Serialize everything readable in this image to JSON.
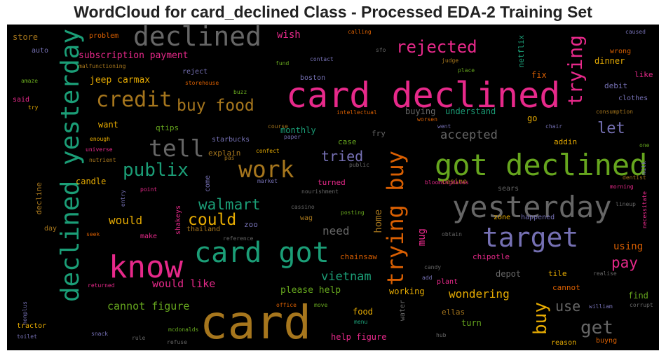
{
  "title": "WordCloud for card_declined Class - Processed EDA-2 Training Set",
  "colors": {
    "pink": "#e7298a",
    "green": "#1b9e77",
    "orange": "#d95f02",
    "purple": "#7570b3",
    "lime": "#66a61e",
    "gold": "#e6ab02",
    "brown": "#a6761d",
    "gray": "#666666"
  },
  "words": [
    "card",
    "card declined",
    "got declined",
    "yesterday",
    "declined yesterday",
    "declined",
    "card got",
    "know",
    "target",
    "trying buy",
    "work",
    "tell",
    "credit",
    "buy food",
    "trying",
    "publix",
    "rejected",
    "buy",
    "walmart",
    "could",
    "let",
    "pay",
    "get",
    "tried",
    "accepted",
    "use",
    "vietnam",
    "wondering",
    "cannot figure",
    "would like",
    "please help",
    "subscription payment",
    "jeep carmax",
    "would",
    "need",
    "chainsaw",
    "mug",
    "home",
    "using",
    "wish",
    "store",
    "auto",
    "problem",
    "malfunctioning",
    "reject",
    "storehouse",
    "buzz",
    "boston",
    "fund",
    "contact",
    "judge",
    "place",
    "netflix",
    "dinner",
    "wrong",
    "like",
    "debit",
    "clothes",
    "caused",
    "calling",
    "sfo",
    "said",
    "try",
    "amaze",
    "want",
    "qtips",
    "buying",
    "understand",
    "intellectual",
    "consumption",
    "monthly",
    "fry",
    "go",
    "course",
    "worsen",
    "went",
    "chair",
    "enough",
    "universe",
    "nutrient",
    "starbucks",
    "explain",
    "pas",
    "confect",
    "paper",
    "case",
    "public",
    "addin",
    "one",
    "candle",
    "decline",
    "entry",
    "point",
    "shakeys",
    "come",
    "market",
    "nourishment",
    "bloomingdales",
    "casino",
    "sears",
    "morning",
    "dentist",
    "milk",
    "lineup",
    "necessitate",
    "thailand",
    "zoo",
    "cassino",
    "posting",
    "wag",
    "zone",
    "happened",
    "turned",
    "day",
    "seek",
    "make",
    "reference",
    "obtain",
    "chipotle",
    "depot",
    "tile",
    "realise",
    "returned",
    "cannot",
    "candy",
    "add",
    "plant",
    "working",
    "food",
    "menu",
    "office",
    "move",
    "water",
    "ellas",
    "william",
    "turn",
    "corrupt",
    "tractor",
    "nonplus",
    "toilet",
    "snack",
    "mcdonalds",
    "rule",
    "refuse",
    "help figure",
    "hub",
    "reason",
    "buyng",
    "fix",
    "find"
  ]
}
